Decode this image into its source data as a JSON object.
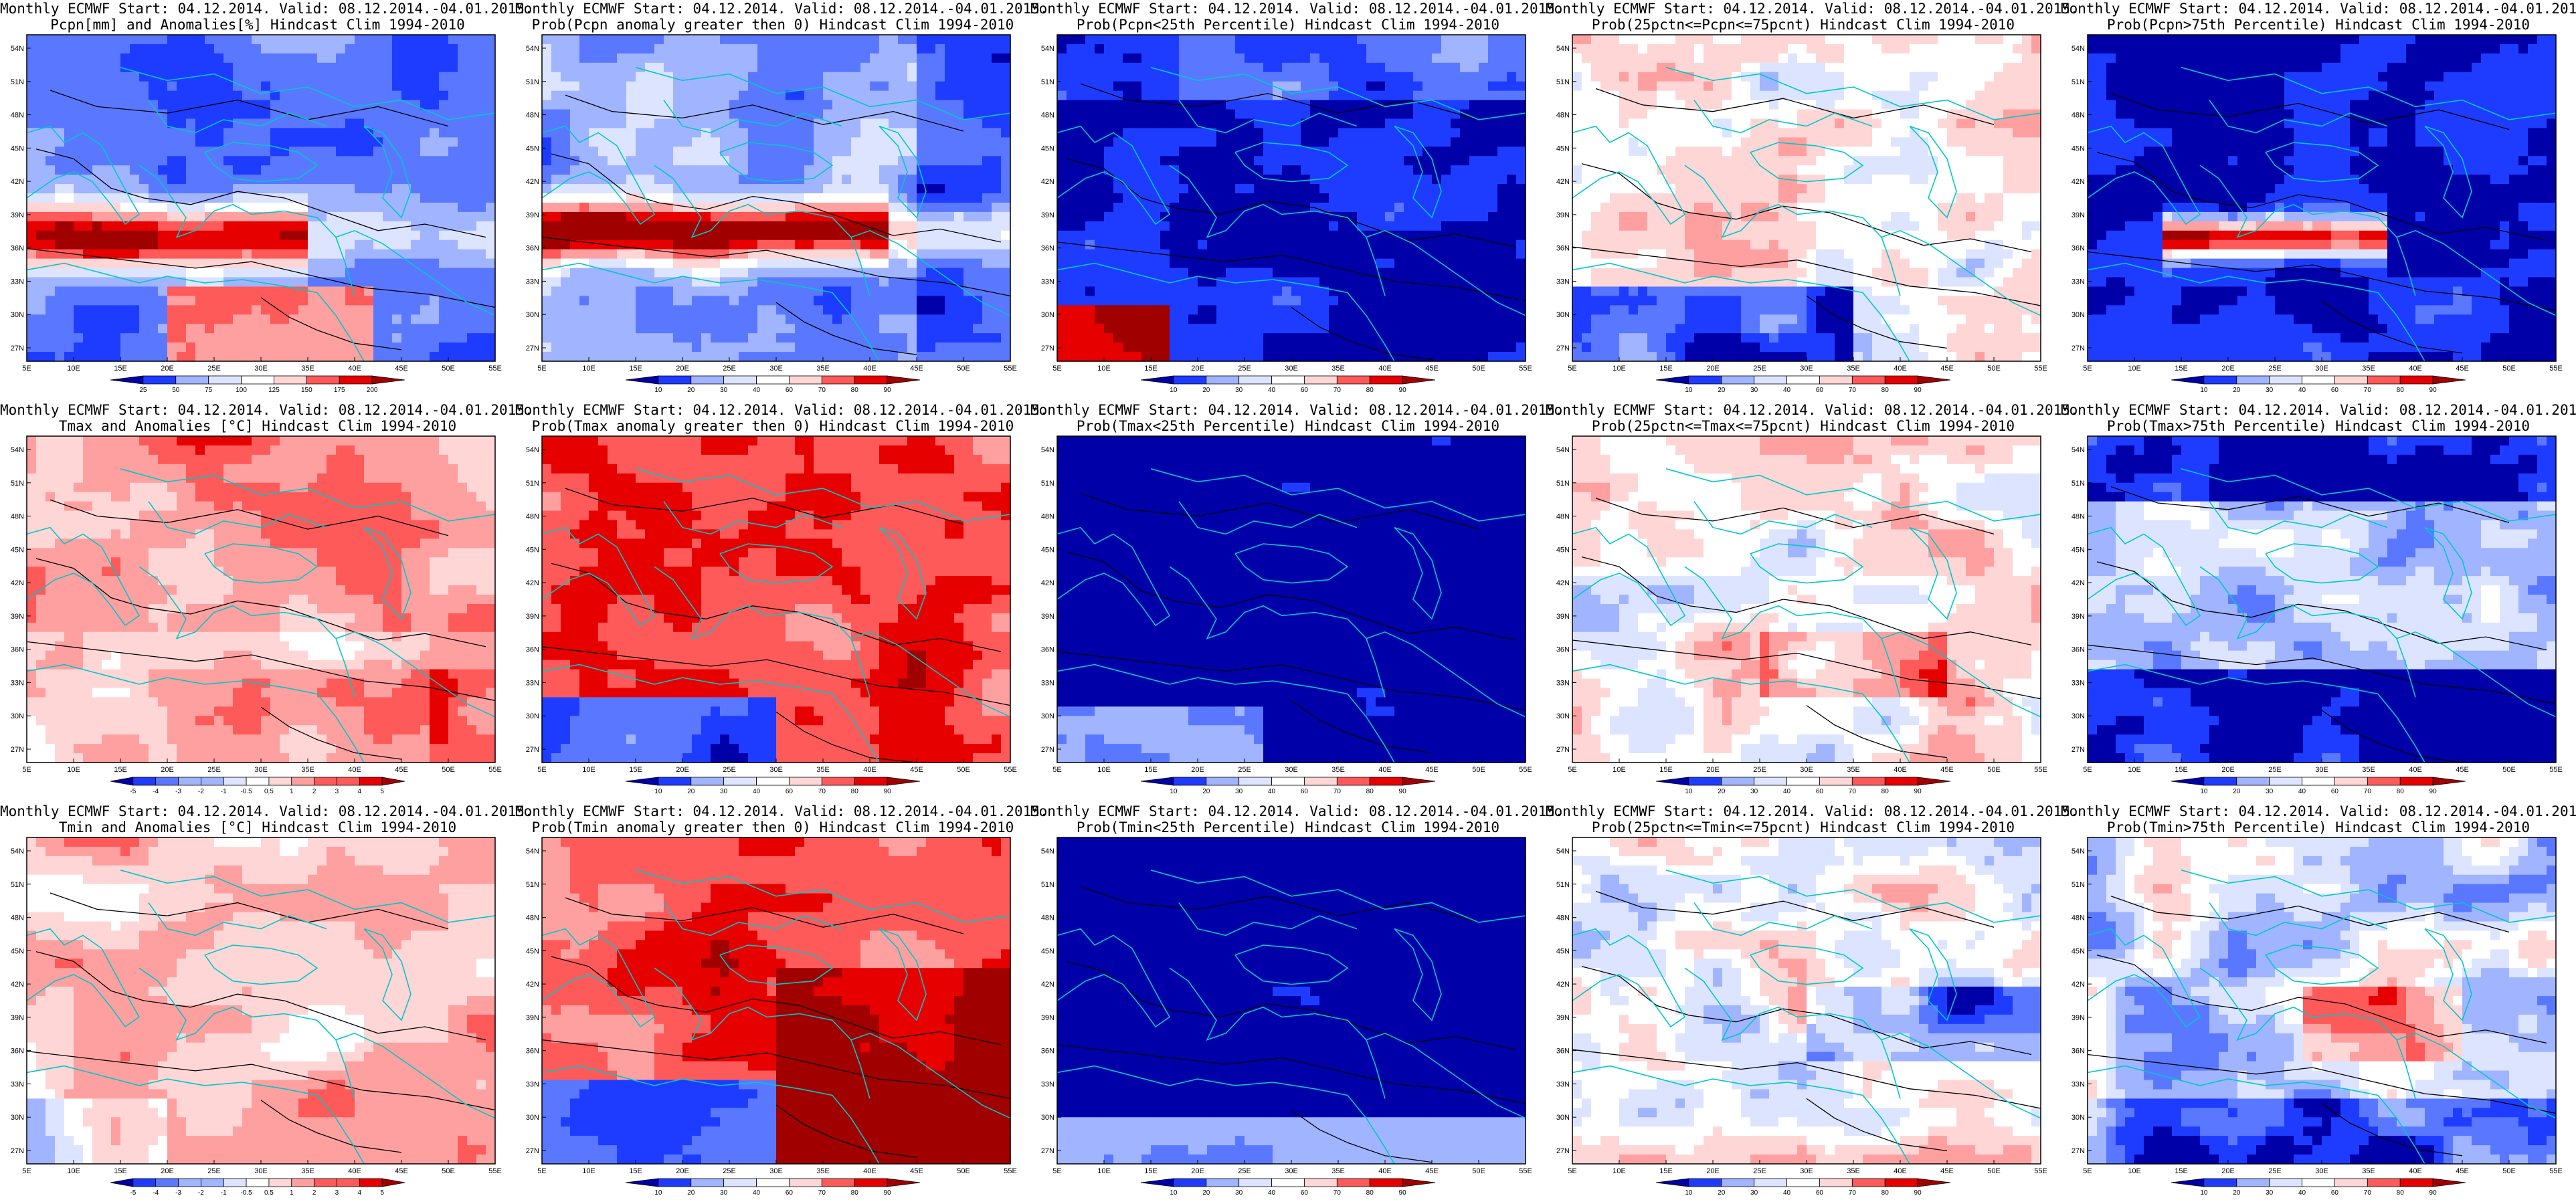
{
  "header_line1": "Monthly ECMWF Start: 04.12.2014. Valid: 08.12.2014.-04.01.2015.",
  "lat_labels": [
    "54N",
    "51N",
    "48N",
    "45N",
    "42N",
    "39N",
    "36N",
    "33N",
    "30N",
    "27N"
  ],
  "lon_labels": [
    "5E",
    "10E",
    "15E",
    "20E",
    "25E",
    "30E",
    "35E",
    "40E",
    "45E",
    "50E",
    "55E"
  ],
  "palette_colors": {
    "dark_blue": "#0000a8",
    "blue": "#1e3cff",
    "mid_blue": "#5a78ff",
    "light_blue": "#a0b4ff",
    "pale_blue": "#dce4ff",
    "white": "#ffffff",
    "pale_red": "#ffd6d6",
    "light_red": "#ffa0a0",
    "mid_red": "#ff5a5a",
    "red": "#e60000",
    "dark_red": "#a00000",
    "coast": "#00c8c8",
    "contour": "#000000"
  },
  "panels": [
    {
      "name": "pcpn-anom",
      "row": 0,
      "col": 0,
      "title": "Pcpn[mm] and Anomalies[%] Hindcast Clim 1994-2010",
      "colorbar": [
        "25",
        "50",
        "75",
        "100",
        "125",
        "150",
        "175",
        "200"
      ],
      "field": "pcpn_anom"
    },
    {
      "name": "pcpn-prob-pos",
      "row": 0,
      "col": 1,
      "title": "Prob(Pcpn anomaly greater then 0) Hindcast Clim 1994-2010",
      "colorbar": [
        "10",
        "20",
        "30",
        "40",
        "60",
        "70",
        "80",
        "90"
      ],
      "field": "pcpn_prob"
    },
    {
      "name": "pcpn-prob-lt25",
      "row": 0,
      "col": 2,
      "title": "Prob(Pcpn<25th Percentile) Hindcast Clim 1994-2010",
      "colorbar": [
        "10",
        "20",
        "30",
        "40",
        "60",
        "70",
        "80",
        "90"
      ],
      "field": "pcpn_lt25"
    },
    {
      "name": "pcpn-prob-25-75",
      "row": 0,
      "col": 3,
      "title": "Prob(25pctn<=Pcpn<=75pcnt) Hindcast Clim 1994-2010",
      "colorbar": [
        "10",
        "20",
        "30",
        "40",
        "60",
        "70",
        "80",
        "90"
      ],
      "field": "pcpn_mid"
    },
    {
      "name": "pcpn-prob-gt75",
      "row": 0,
      "col": 4,
      "title": "Prob(Pcpn>75th Percentile) Hindcast Clim 1994-2010",
      "colorbar": [
        "10",
        "20",
        "30",
        "40",
        "60",
        "70",
        "80",
        "90"
      ],
      "field": "pcpn_gt75"
    },
    {
      "name": "tmax-anom",
      "row": 1,
      "col": 0,
      "title": "Tmax and Anomalies [°C] Hindcast Clim 1994-2010",
      "colorbar": [
        "-5",
        "-4",
        "-3",
        "-2",
        "-1",
        "-0.5",
        "0.5",
        "1",
        "2",
        "3",
        "4",
        "5"
      ],
      "field": "tmax_anom"
    },
    {
      "name": "tmax-prob-pos",
      "row": 1,
      "col": 1,
      "title": "Prob(Tmax anomaly greater then 0) Hindcast Clim 1994-2010",
      "colorbar": [
        "10",
        "20",
        "30",
        "40",
        "60",
        "70",
        "80",
        "90"
      ],
      "field": "tmax_prob"
    },
    {
      "name": "tmax-prob-lt25",
      "row": 1,
      "col": 2,
      "title": "Prob(Tmax<25th Percentile) Hindcast Clim 1994-2010",
      "colorbar": [
        "10",
        "20",
        "30",
        "40",
        "60",
        "70",
        "80",
        "90"
      ],
      "field": "tmax_lt25"
    },
    {
      "name": "tmax-prob-25-75",
      "row": 1,
      "col": 3,
      "title": "Prob(25pctn<=Tmax<=75pcnt) Hindcast Clim 1994-2010",
      "colorbar": [
        "10",
        "20",
        "30",
        "40",
        "60",
        "70",
        "80",
        "90"
      ],
      "field": "tmax_mid"
    },
    {
      "name": "tmax-prob-gt75",
      "row": 1,
      "col": 4,
      "title": "Prob(Tmax>75th Percentile) Hindcast Clim 1994-2010",
      "colorbar": [
        "10",
        "20",
        "30",
        "40",
        "60",
        "70",
        "80",
        "90"
      ],
      "field": "tmax_gt75"
    },
    {
      "name": "tmin-anom",
      "row": 2,
      "col": 0,
      "title": "Tmin and Anomalies [°C] Hindcast Clim 1994-2010",
      "colorbar": [
        "-5",
        "-4",
        "-3",
        "-2",
        "-1",
        "-0.5",
        "0.5",
        "1",
        "2",
        "3",
        "4",
        "5"
      ],
      "field": "tmin_anom"
    },
    {
      "name": "tmin-prob-pos",
      "row": 2,
      "col": 1,
      "title": "Prob(Tmin anomaly greater then 0) Hindcast Clim 1994-2010",
      "colorbar": [
        "10",
        "20",
        "30",
        "40",
        "60",
        "70",
        "80",
        "90"
      ],
      "field": "tmin_prob"
    },
    {
      "name": "tmin-prob-lt25",
      "row": 2,
      "col": 2,
      "title": "Prob(Tmin<25th Percentile) Hindcast Clim 1994-2010",
      "colorbar": [
        "10",
        "20",
        "30",
        "40",
        "60",
        "70",
        "80",
        "90"
      ],
      "field": "tmin_lt25"
    },
    {
      "name": "tmin-prob-25-75",
      "row": 2,
      "col": 3,
      "title": "Prob(25pctn<=Tmin<=75pcnt) Hindcast Clim 1994-2010",
      "colorbar": [
        "10",
        "20",
        "30",
        "40",
        "60",
        "70",
        "80",
        "90"
      ],
      "field": "tmin_mid"
    },
    {
      "name": "tmin-prob-gt75",
      "row": 2,
      "col": 4,
      "title": "Prob(Tmin>75th Percentile) Hindcast Clim 1994-2010",
      "colorbar": [
        "10",
        "20",
        "30",
        "40",
        "60",
        "70",
        "80",
        "90"
      ],
      "field": "tmin_gt75"
    }
  ]
}
